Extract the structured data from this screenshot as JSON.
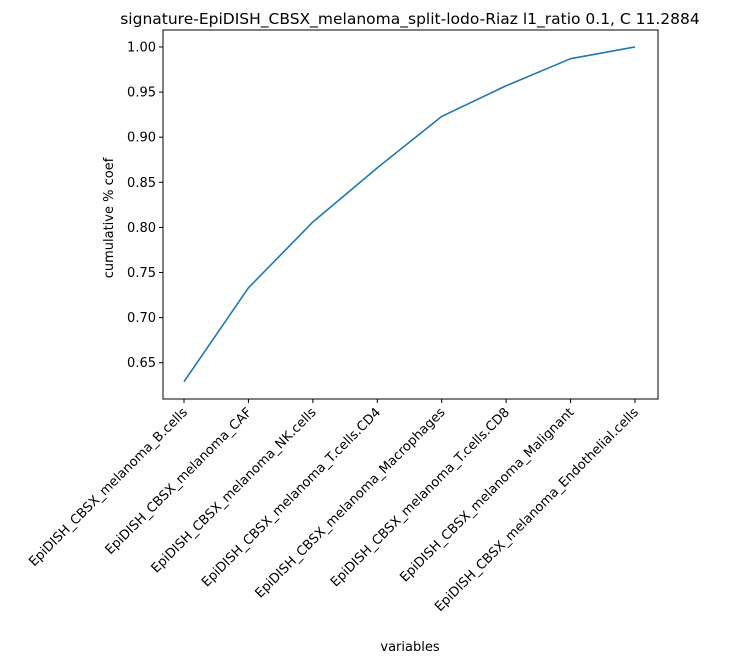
{
  "chart_data": {
    "type": "line",
    "title": "signature-EpiDISH_CBSX_melanoma_split-lodo-Riaz l1_ratio 0.1, C 11.2884",
    "xlabel": "variables",
    "ylabel": "cumulative % coef",
    "categories": [
      "EpiDISH_CBSX_melanoma_B.cells",
      "EpiDISH_CBSX_melanoma_CAF",
      "EpiDISH_CBSX_melanoma_NK.cells",
      "EpiDISH_CBSX_melanoma_T.cells.CD4",
      "EpiDISH_CBSX_melanoma_Macrophages",
      "EpiDISH_CBSX_melanoma_T.cells.CD8",
      "EpiDISH_CBSX_melanoma_Malignant",
      "EpiDISH_CBSX_melanoma_Endothelial.cells"
    ],
    "series": [
      {
        "values": [
          0.629,
          0.733,
          0.806,
          0.866,
          0.923,
          0.957,
          0.987,
          1.0
        ]
      }
    ],
    "yticks": [
      "0.65",
      "0.70",
      "0.75",
      "0.80",
      "0.85",
      "0.90",
      "0.95",
      "1.00"
    ],
    "ylim": [
      0.6098,
      1.0188
    ],
    "grid": false,
    "legend": "none",
    "line_color": "#1f77b4"
  }
}
